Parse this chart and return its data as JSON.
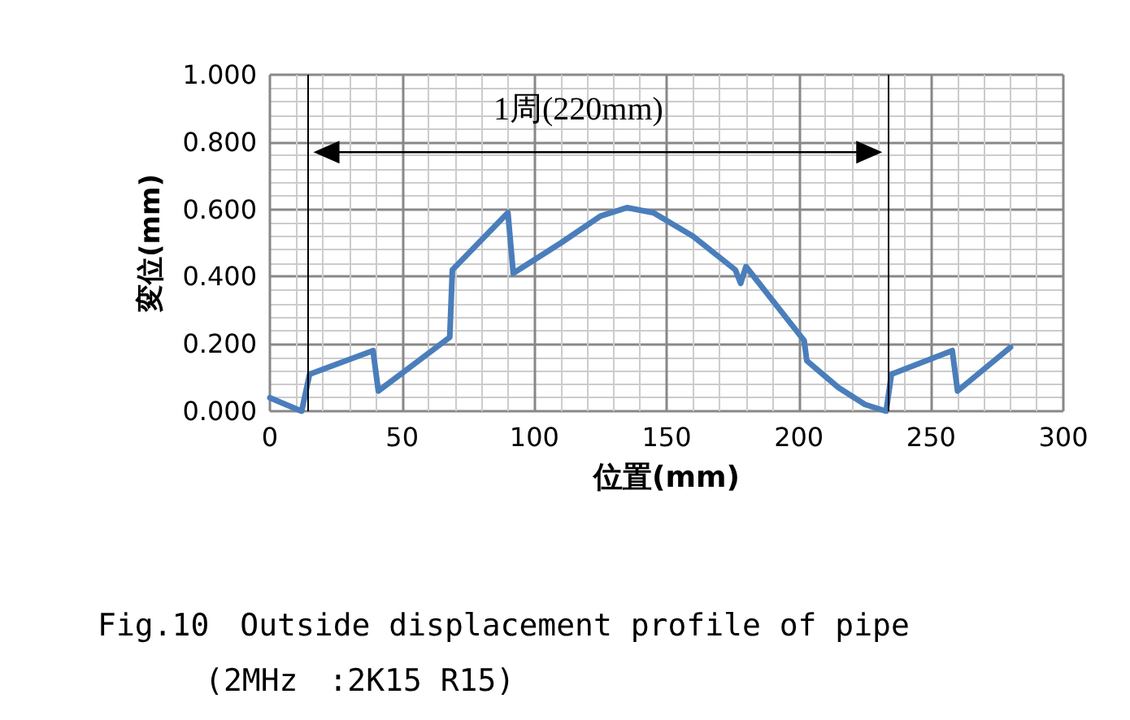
{
  "chart_data": {
    "type": "line",
    "xlabel": "位置(mm)",
    "ylabel": "変位(mm)",
    "x": [
      0,
      12,
      15,
      39,
      41,
      68,
      69,
      90,
      92,
      110,
      125,
      135,
      145,
      160,
      176,
      178,
      180,
      195,
      202,
      203,
      215,
      225,
      233,
      235,
      258,
      260,
      280
    ],
    "series": [
      {
        "color": "#4a7ebb",
        "values": [
          0.04,
          0.0,
          0.11,
          0.18,
          0.06,
          0.22,
          0.42,
          0.59,
          0.41,
          0.5,
          0.58,
          0.605,
          0.59,
          0.52,
          0.42,
          0.38,
          0.43,
          0.28,
          0.21,
          0.15,
          0.07,
          0.02,
          0.0,
          0.11,
          0.18,
          0.06,
          0.19
        ]
      }
    ],
    "xlim": [
      0,
      300
    ],
    "xticks": [
      0,
      50,
      100,
      150,
      200,
      250,
      300
    ],
    "ylim": [
      0,
      1
    ],
    "yticks": [
      {
        "value": 0,
        "label": "0.000"
      },
      {
        "value": 0.2,
        "label": "0.200"
      },
      {
        "value": 0.4,
        "label": "0.400"
      },
      {
        "value": 0.6,
        "label": "0.600"
      },
      {
        "value": 0.8,
        "label": "0.800"
      },
      {
        "value": 1,
        "label": "1.000"
      }
    ],
    "ref_lines": [
      {
        "axis": "x",
        "value": 14,
        "color": "#000000"
      },
      {
        "axis": "x",
        "value": 234,
        "color": "#000000"
      }
    ],
    "annotations": [
      "1周(220mm)",
      "Fig.10　Outside displacement profile of pipe",
      "(2MHz　:2K15 R15)"
    ],
    "grid": true,
    "marker": "none",
    "line_style": "solid"
  }
}
